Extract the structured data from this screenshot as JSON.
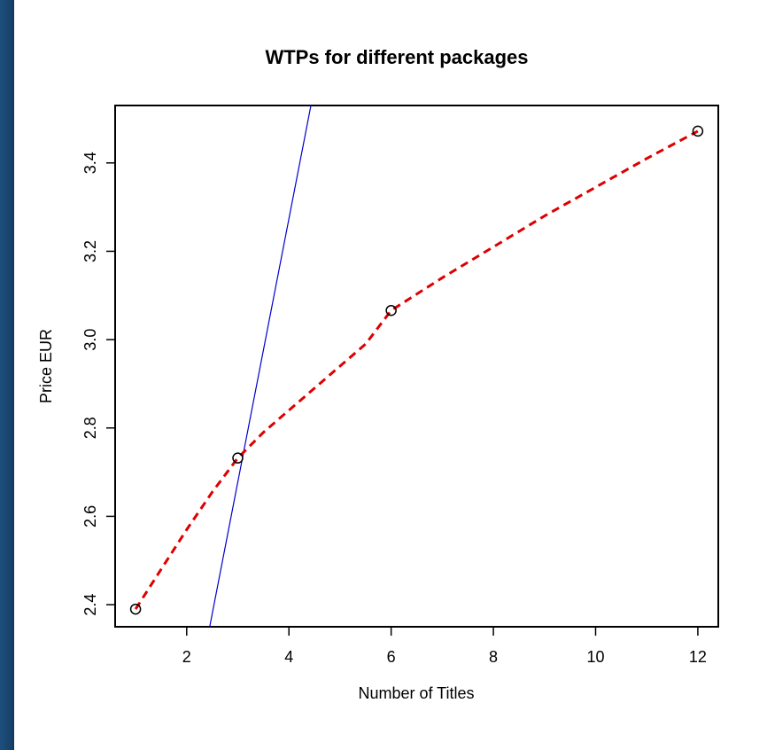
{
  "chart_data": {
    "type": "line",
    "title": "WTPs for different packages",
    "xlabel": "Number of Titles",
    "ylabel": "Price EUR",
    "xlim": [
      0.6,
      12.4
    ],
    "ylim": [
      2.35,
      3.53
    ],
    "xticks": [
      2,
      4,
      6,
      8,
      10,
      12
    ],
    "xtick_labels": [
      "2",
      "4",
      "6",
      "8",
      "10",
      "12"
    ],
    "yticks": [
      2.4,
      2.6,
      2.8,
      3.0,
      3.2,
      3.4
    ],
    "ytick_labels": [
      "2.4",
      "2.6",
      "2.8",
      "3.0",
      "3.2",
      "3.4"
    ],
    "grid": false,
    "points": {
      "x": [
        1,
        3,
        6,
        12
      ],
      "y": [
        2.39,
        2.732,
        3.066,
        3.472
      ]
    },
    "fitted_curve": {
      "x": [
        1,
        1.5,
        2,
        2.5,
        3,
        3.5,
        4,
        4.5,
        5,
        5.5,
        6,
        7,
        8,
        9,
        10,
        11,
        12
      ],
      "y": [
        2.39,
        2.48,
        2.57,
        2.655,
        2.732,
        2.79,
        2.84,
        2.89,
        2.94,
        2.99,
        3.066,
        3.14,
        3.21,
        3.28,
        3.345,
        3.41,
        3.472
      ]
    },
    "tangent_line": {
      "x": [
        2.45,
        4.43
      ],
      "y": [
        2.35,
        3.53
      ]
    },
    "colors": {
      "points": "#000000",
      "fitted_curve": "#dd0000",
      "tangent_line": "#0000cc",
      "axes": "#000000"
    }
  }
}
